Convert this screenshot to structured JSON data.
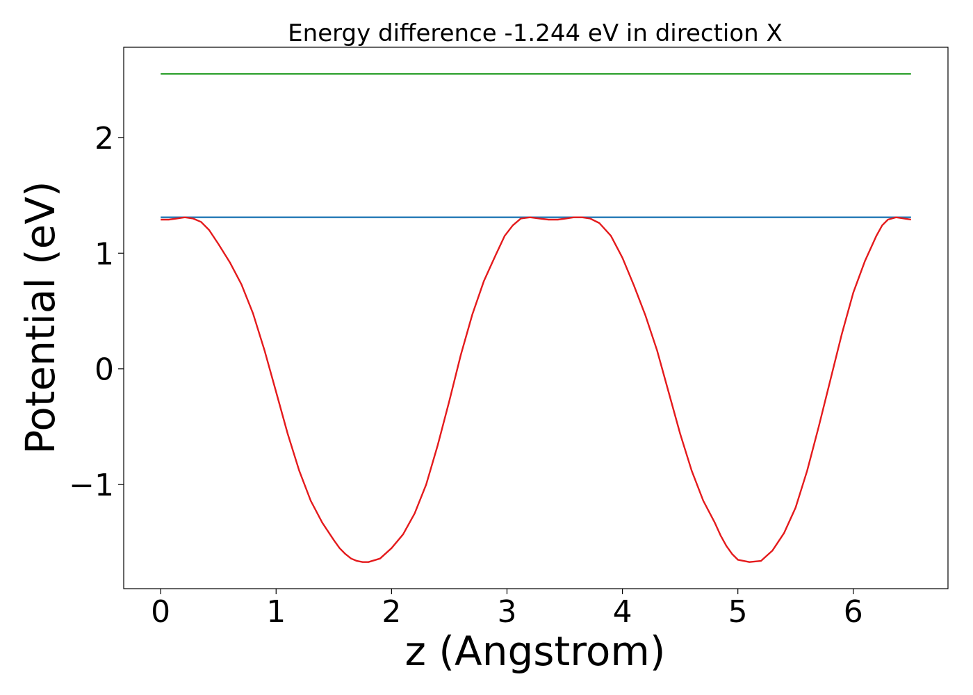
{
  "chart_data": {
    "type": "line",
    "title": "Energy difference -1.244 eV in direction X",
    "xlabel": "z (Angstrom)",
    "ylabel": "Potential (eV)",
    "xlim": [
      -0.32,
      6.82
    ],
    "ylim": [
      -1.9,
      2.78
    ],
    "xticks": [
      0,
      1,
      2,
      3,
      4,
      5,
      6
    ],
    "xtick_labels": [
      "0",
      "1",
      "2",
      "3",
      "4",
      "5",
      "6"
    ],
    "yticks": [
      -1,
      0,
      1,
      2
    ],
    "ytick_labels": [
      "−1",
      "0",
      "1",
      "2"
    ],
    "grid": false,
    "legend": "none",
    "series": [
      {
        "color": "#2ca02c",
        "x": [
          0,
          6.5
        ],
        "y": [
          2.55,
          2.55
        ]
      },
      {
        "color": "#1f77b4",
        "x": [
          0,
          6.5
        ],
        "y": [
          1.31,
          1.31
        ]
      },
      {
        "color": "#e41a1c",
        "x": [
          0.0,
          0.07,
          0.14,
          0.21,
          0.28,
          0.35,
          0.42,
          0.5,
          0.6,
          0.7,
          0.8,
          0.9,
          1.0,
          1.1,
          1.2,
          1.3,
          1.4,
          1.5,
          1.55,
          1.6,
          1.65,
          1.7,
          1.75,
          1.8,
          1.9,
          2.0,
          2.1,
          2.2,
          2.3,
          2.4,
          2.5,
          2.6,
          2.7,
          2.8,
          2.9,
          2.98,
          3.05,
          3.12,
          3.2,
          3.28,
          3.36,
          3.44,
          3.51,
          3.58,
          3.65,
          3.72,
          3.8,
          3.9,
          4.0,
          4.1,
          4.2,
          4.3,
          4.4,
          4.5,
          4.6,
          4.7,
          4.8,
          4.85,
          4.9,
          4.95,
          5.0,
          5.05,
          5.1,
          5.2,
          5.3,
          5.4,
          5.5,
          5.6,
          5.7,
          5.8,
          5.9,
          6.0,
          6.1,
          6.2,
          6.25,
          6.3,
          6.37,
          6.44,
          6.5
        ],
        "y": [
          1.29,
          1.29,
          1.3,
          1.31,
          1.3,
          1.27,
          1.2,
          1.08,
          0.92,
          0.73,
          0.48,
          0.16,
          -0.2,
          -0.56,
          -0.88,
          -1.14,
          -1.33,
          -1.48,
          -1.55,
          -1.6,
          -1.64,
          -1.66,
          -1.67,
          -1.67,
          -1.64,
          -1.55,
          -1.43,
          -1.25,
          -1.0,
          -0.66,
          -0.28,
          0.12,
          0.47,
          0.76,
          0.98,
          1.15,
          1.24,
          1.3,
          1.31,
          1.3,
          1.29,
          1.29,
          1.3,
          1.31,
          1.31,
          1.3,
          1.26,
          1.15,
          0.96,
          0.72,
          0.46,
          0.16,
          -0.2,
          -0.56,
          -0.88,
          -1.14,
          -1.33,
          -1.44,
          -1.53,
          -1.6,
          -1.65,
          -1.66,
          -1.67,
          -1.66,
          -1.57,
          -1.42,
          -1.2,
          -0.88,
          -0.5,
          -0.1,
          0.3,
          0.66,
          0.93,
          1.15,
          1.24,
          1.29,
          1.31,
          1.3,
          1.29
        ]
      }
    ]
  }
}
